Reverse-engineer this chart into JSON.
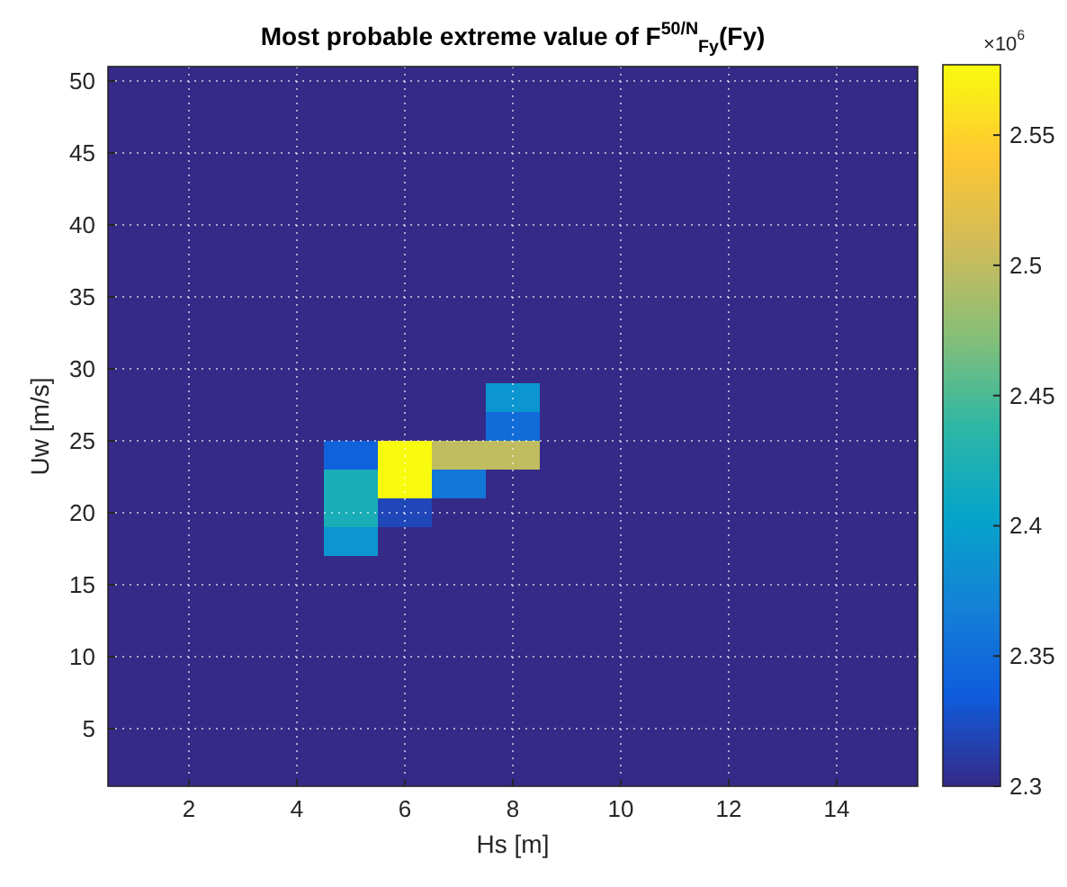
{
  "chart_data": {
    "type": "heatmap",
    "title": "Most probable extreme value of F$^{50/N}$$_{Fy}$(Fy)",
    "xlabel": "Hs [m]",
    "ylabel": "Uw [m/s]",
    "x": [
      1,
      2,
      3,
      4,
      5,
      6,
      7,
      8,
      9,
      10,
      11,
      12,
      13,
      14,
      15
    ],
    "y": [
      50,
      48,
      46,
      44,
      42,
      40,
      38,
      36,
      34,
      32,
      30,
      28,
      26,
      24,
      22,
      20,
      18,
      16,
      14,
      12,
      10,
      8,
      6,
      4,
      2
    ],
    "xlim": [
      0.5,
      15.5
    ],
    "ylim": [
      1,
      51
    ],
    "xticks": [
      2,
      4,
      6,
      8,
      10,
      12,
      14
    ],
    "yticks": [
      5,
      10,
      15,
      20,
      25,
      30,
      35,
      40,
      45,
      50
    ],
    "grid": true,
    "clim": [
      2.3,
      2.577
    ],
    "cticks": [
      2.3,
      2.35,
      2.4,
      2.45,
      2.5,
      2.55
    ],
    "annotations": [
      "×10$^{6}$"
    ],
    "cells": [
      [
        2.3,
        2.3,
        2.3,
        2.3,
        2.3,
        2.3,
        2.3,
        2.3,
        2.3,
        2.3,
        2.3,
        2.3,
        2.3,
        2.3,
        2.3
      ],
      [
        2.3,
        2.3,
        2.3,
        2.3,
        2.3,
        2.3,
        2.3,
        2.3,
        2.3,
        2.3,
        2.3,
        2.3,
        2.3,
        2.3,
        2.3
      ],
      [
        2.3,
        2.3,
        2.3,
        2.3,
        2.3,
        2.3,
        2.3,
        2.3,
        2.3,
        2.3,
        2.3,
        2.3,
        2.3,
        2.3,
        2.3
      ],
      [
        2.3,
        2.3,
        2.3,
        2.3,
        2.3,
        2.3,
        2.3,
        2.3,
        2.3,
        2.3,
        2.3,
        2.3,
        2.3,
        2.3,
        2.3
      ],
      [
        2.3,
        2.3,
        2.3,
        2.3,
        2.3,
        2.3,
        2.3,
        2.3,
        2.3,
        2.3,
        2.3,
        2.3,
        2.3,
        2.3,
        2.3
      ],
      [
        2.3,
        2.3,
        2.3,
        2.3,
        2.3,
        2.3,
        2.3,
        2.3,
        2.3,
        2.3,
        2.3,
        2.3,
        2.3,
        2.3,
        2.3
      ],
      [
        2.3,
        2.3,
        2.3,
        2.3,
        2.3,
        2.3,
        2.3,
        2.3,
        2.3,
        2.3,
        2.3,
        2.3,
        2.3,
        2.3,
        2.3
      ],
      [
        2.3,
        2.3,
        2.3,
        2.3,
        2.3,
        2.3,
        2.3,
        2.3,
        2.3,
        2.3,
        2.3,
        2.3,
        2.3,
        2.3,
        2.3
      ],
      [
        2.3,
        2.3,
        2.3,
        2.3,
        2.3,
        2.3,
        2.3,
        2.3,
        2.3,
        2.3,
        2.3,
        2.3,
        2.3,
        2.3,
        2.3
      ],
      [
        2.3,
        2.3,
        2.3,
        2.3,
        2.3,
        2.3,
        2.3,
        2.3,
        2.3,
        2.3,
        2.3,
        2.3,
        2.3,
        2.3,
        2.3
      ],
      [
        2.3,
        2.3,
        2.3,
        2.3,
        2.3,
        2.3,
        2.3,
        2.3,
        2.3,
        2.3,
        2.3,
        2.3,
        2.3,
        2.3,
        2.3
      ],
      [
        2.3,
        2.3,
        2.3,
        2.3,
        2.3,
        2.3,
        2.3,
        2.39,
        2.3,
        2.3,
        2.3,
        2.3,
        2.3,
        2.3,
        2.3
      ],
      [
        2.3,
        2.3,
        2.3,
        2.3,
        2.3,
        2.3,
        2.3,
        2.35,
        2.3,
        2.3,
        2.3,
        2.3,
        2.3,
        2.3,
        2.3
      ],
      [
        2.3,
        2.3,
        2.3,
        2.3,
        2.34,
        2.577,
        2.5,
        2.5,
        2.3,
        2.3,
        2.3,
        2.3,
        2.3,
        2.3,
        2.3
      ],
      [
        2.3,
        2.3,
        2.3,
        2.3,
        2.42,
        2.577,
        2.36,
        2.3,
        2.3,
        2.3,
        2.3,
        2.3,
        2.3,
        2.3,
        2.3
      ],
      [
        2.3,
        2.3,
        2.3,
        2.3,
        2.42,
        2.32,
        2.3,
        2.3,
        2.3,
        2.3,
        2.3,
        2.3,
        2.3,
        2.3,
        2.3
      ],
      [
        2.3,
        2.3,
        2.3,
        2.3,
        2.39,
        2.3,
        2.3,
        2.3,
        2.3,
        2.3,
        2.3,
        2.3,
        2.3,
        2.3,
        2.3
      ],
      [
        2.3,
        2.3,
        2.3,
        2.3,
        2.3,
        2.3,
        2.3,
        2.3,
        2.3,
        2.3,
        2.3,
        2.3,
        2.3,
        2.3,
        2.3
      ],
      [
        2.3,
        2.3,
        2.3,
        2.3,
        2.3,
        2.3,
        2.3,
        2.3,
        2.3,
        2.3,
        2.3,
        2.3,
        2.3,
        2.3,
        2.3
      ],
      [
        2.3,
        2.3,
        2.3,
        2.3,
        2.3,
        2.3,
        2.3,
        2.3,
        2.3,
        2.3,
        2.3,
        2.3,
        2.3,
        2.3,
        2.3
      ],
      [
        2.3,
        2.3,
        2.3,
        2.3,
        2.3,
        2.3,
        2.3,
        2.3,
        2.3,
        2.3,
        2.3,
        2.3,
        2.3,
        2.3,
        2.3
      ],
      [
        2.3,
        2.3,
        2.3,
        2.3,
        2.3,
        2.3,
        2.3,
        2.3,
        2.3,
        2.3,
        2.3,
        2.3,
        2.3,
        2.3,
        2.3
      ],
      [
        2.3,
        2.3,
        2.3,
        2.3,
        2.3,
        2.3,
        2.3,
        2.3,
        2.3,
        2.3,
        2.3,
        2.3,
        2.3,
        2.3,
        2.3
      ],
      [
        2.3,
        2.3,
        2.3,
        2.3,
        2.3,
        2.3,
        2.3,
        2.3,
        2.3,
        2.3,
        2.3,
        2.3,
        2.3,
        2.3,
        2.3
      ],
      [
        2.3,
        2.3,
        2.3,
        2.3,
        2.3,
        2.3,
        2.3,
        2.3,
        2.3,
        2.3,
        2.3,
        2.3,
        2.3,
        2.3,
        2.3
      ]
    ]
  }
}
